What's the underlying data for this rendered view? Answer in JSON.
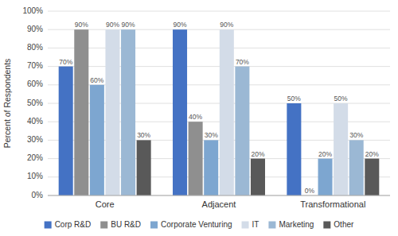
{
  "chart_data": {
    "type": "bar",
    "y_label": "Percent of Respondents",
    "categories": [
      "Core",
      "Adjacent",
      "Transformational"
    ],
    "series": [
      {
        "name": "Corp R&D",
        "color": "#4472C4",
        "values": [
          70,
          90,
          50
        ],
        "value_labels": [
          "70%",
          "90%",
          "50%"
        ]
      },
      {
        "name": "BU R&D",
        "color": "#8F8F8F",
        "values": [
          90,
          40,
          0
        ],
        "value_labels": [
          "90%",
          "40%",
          "0%"
        ]
      },
      {
        "name": "Corporate Venturing",
        "color": "#7DA6D0",
        "values": [
          60,
          30,
          20
        ],
        "value_labels": [
          "60%",
          "30%",
          "20%"
        ]
      },
      {
        "name": "IT",
        "color": "#D3DCE8",
        "values": [
          90,
          90,
          50
        ],
        "value_labels": [
          "90%",
          "90%",
          "50%"
        ]
      },
      {
        "name": "Marketing",
        "color": "#9BB8D4",
        "values": [
          90,
          70,
          30
        ],
        "value_labels": [
          "90%",
          "70%",
          "30%"
        ]
      },
      {
        "name": "Other",
        "color": "#595959",
        "values": [
          30,
          20,
          20
        ],
        "value_labels": [
          "30%",
          "20%",
          "20%"
        ]
      }
    ],
    "ylim": [
      0,
      100
    ],
    "yticks": [
      {
        "value": 0,
        "label": "0%"
      },
      {
        "value": 10,
        "label": "10%"
      },
      {
        "value": 20,
        "label": "20%"
      },
      {
        "value": 30,
        "label": "30%"
      },
      {
        "value": 40,
        "label": "40%"
      },
      {
        "value": 50,
        "label": "50%"
      },
      {
        "value": 60,
        "label": "60%"
      },
      {
        "value": 70,
        "label": "70%"
      },
      {
        "value": 80,
        "label": "80%"
      },
      {
        "value": 90,
        "label": "90%"
      },
      {
        "value": 100,
        "label": "100%"
      }
    ],
    "grid": true,
    "legend": "bottom",
    "data_labels": true
  }
}
